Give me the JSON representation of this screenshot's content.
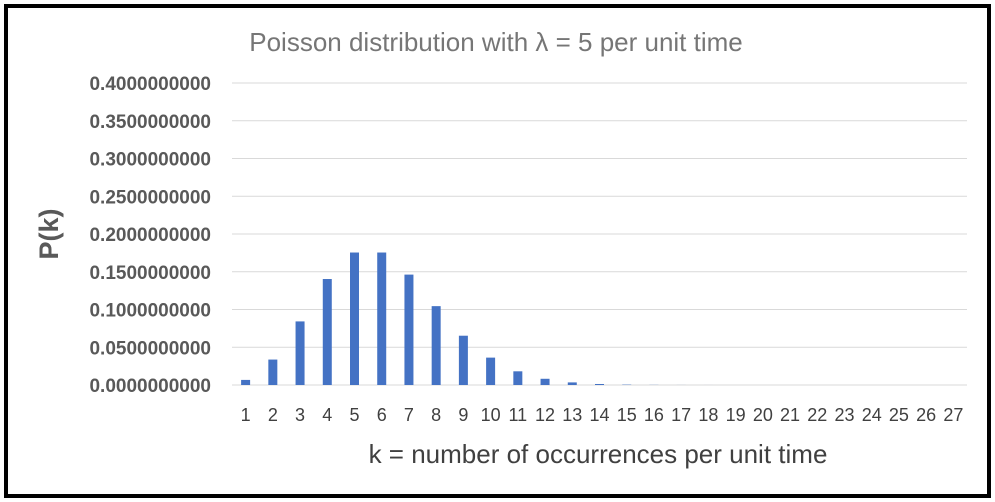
{
  "chart_data": {
    "type": "bar",
    "title": "Poisson distribution with λ = 5 per unit time",
    "xlabel": "k = number of occurrences per unit time",
    "ylabel": "P(k)",
    "categories": [
      "1",
      "2",
      "3",
      "4",
      "5",
      "6",
      "7",
      "8",
      "9",
      "10",
      "11",
      "12",
      "13",
      "14",
      "15",
      "16",
      "17",
      "18",
      "19",
      "20",
      "21",
      "22",
      "23",
      "24",
      "25",
      "26",
      "27"
    ],
    "values": [
      0.006737947,
      0.033689735,
      0.0842243375,
      0.1403738958,
      0.1754673698,
      0.1754673698,
      0.1462228081,
      0.104444863,
      0.0652780393,
      0.0362655774,
      0.0181327887,
      0.0082421767,
      0.0034342403,
      0.0013208616,
      0.0004717363,
      0.0001572454,
      4.91392e-05,
      1.44527e-05,
      4.0146e-06,
      1.0565e-06,
      2.641e-07,
      6.29e-08,
      1.43e-08,
      3.1e-09,
      6e-10,
      1e-10,
      0.0
    ],
    "ylim": [
      0,
      0.4
    ],
    "yticks": [
      "0.0000000000",
      "0.0500000000",
      "0.1000000000",
      "0.1500000000",
      "0.2000000000",
      "0.2500000000",
      "0.3000000000",
      "0.3500000000",
      "0.4000000000"
    ],
    "grid": true,
    "legend": "none",
    "bar_color": "#4472c4"
  }
}
